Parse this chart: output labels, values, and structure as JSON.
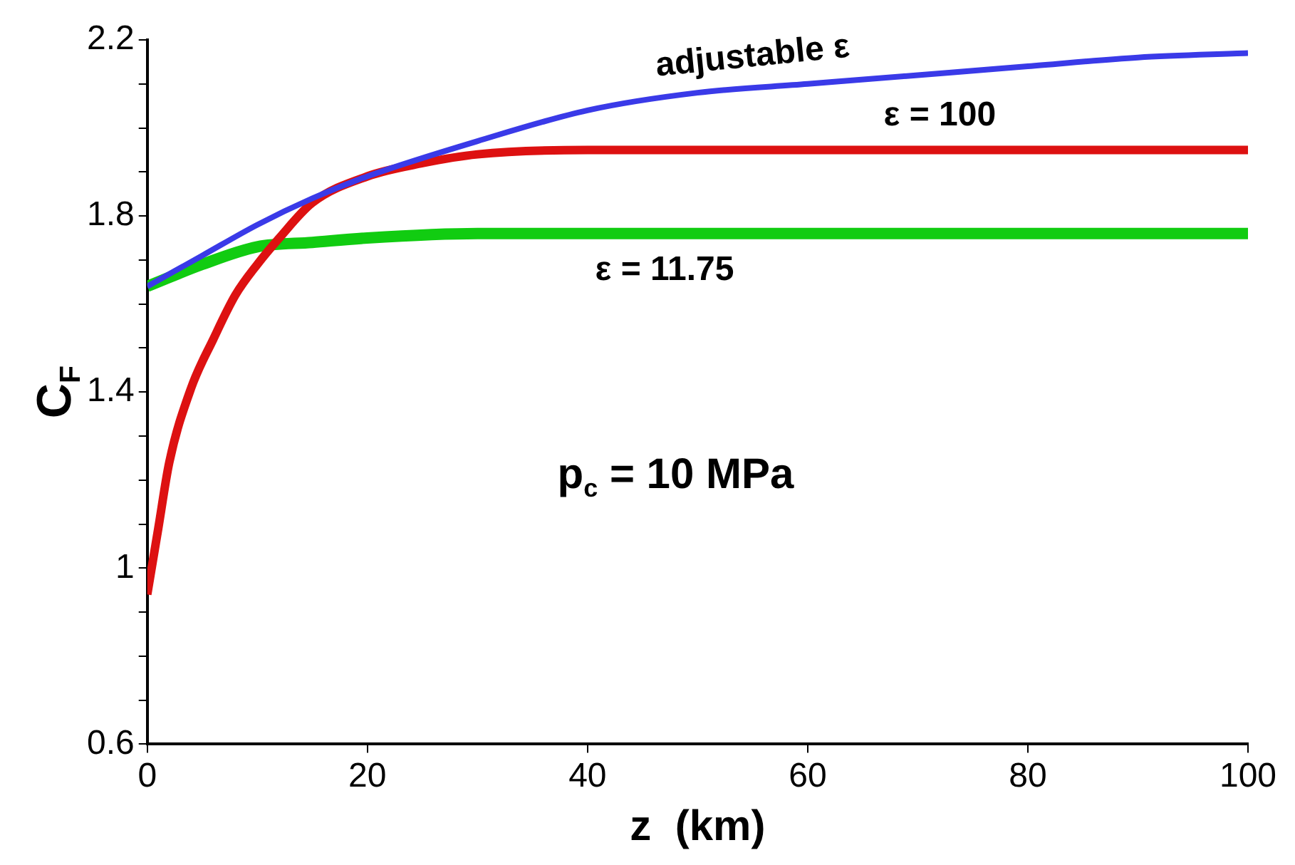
{
  "chart_data": {
    "type": "line",
    "xlabel": "z  (km)",
    "ylabel": "C$_{F}$",
    "annotations": [
      "p$_{c}$ = 10 MPa"
    ],
    "xlim": [
      0,
      100
    ],
    "xticks": [
      0,
      20,
      40,
      60,
      80,
      100
    ],
    "ylim": [
      0.6,
      2.2
    ],
    "yticks": [
      0.6,
      {
        "value": 0.7,
        "label": null
      },
      {
        "value": 0.8,
        "label": null
      },
      {
        "value": 0.9,
        "label": null
      },
      1,
      {
        "value": 1.1,
        "label": null
      },
      {
        "value": 1.2,
        "label": null
      },
      {
        "value": 1.3,
        "label": null
      },
      1.4,
      {
        "value": 1.5,
        "label": null
      },
      {
        "value": 1.6,
        "label": null
      },
      {
        "value": 1.7,
        "label": null
      },
      1.8,
      {
        "value": 1.9,
        "label": null
      },
      {
        "value": 2.0,
        "label": null
      },
      {
        "value": 2.1,
        "label": null
      },
      2.2
    ],
    "grid": false,
    "legend": false,
    "marker": "none",
    "line_style": "solid",
    "series": [
      {
        "name": "adjustable ε",
        "color": "#3a3ae8",
        "x": [
          0,
          5,
          10,
          15,
          20,
          30,
          40,
          50,
          60,
          70,
          80,
          90,
          100
        ],
        "values": [
          1.64,
          1.71,
          1.78,
          1.84,
          1.89,
          1.97,
          2.04,
          2.08,
          2.1,
          2.12,
          2.14,
          2.16,
          2.17
        ]
      },
      {
        "name": "ε = 100",
        "color": "#dd1111",
        "x": [
          0,
          1,
          2,
          4,
          6,
          8,
          10,
          12,
          15,
          20,
          25,
          30,
          40,
          60,
          80,
          100
        ],
        "values": [
          0.94,
          1.09,
          1.24,
          1.41,
          1.52,
          1.62,
          1.69,
          1.75,
          1.83,
          1.89,
          1.92,
          1.94,
          1.95,
          1.95,
          1.95,
          1.95
        ]
      },
      {
        "name": "ε = 11.75",
        "color": "#11cc11",
        "x": [
          0,
          5,
          10,
          15,
          20,
          30,
          40,
          60,
          80,
          100
        ],
        "values": [
          1.64,
          1.69,
          1.73,
          1.74,
          1.75,
          1.76,
          1.76,
          1.76,
          1.76,
          1.76
        ]
      }
    ]
  }
}
